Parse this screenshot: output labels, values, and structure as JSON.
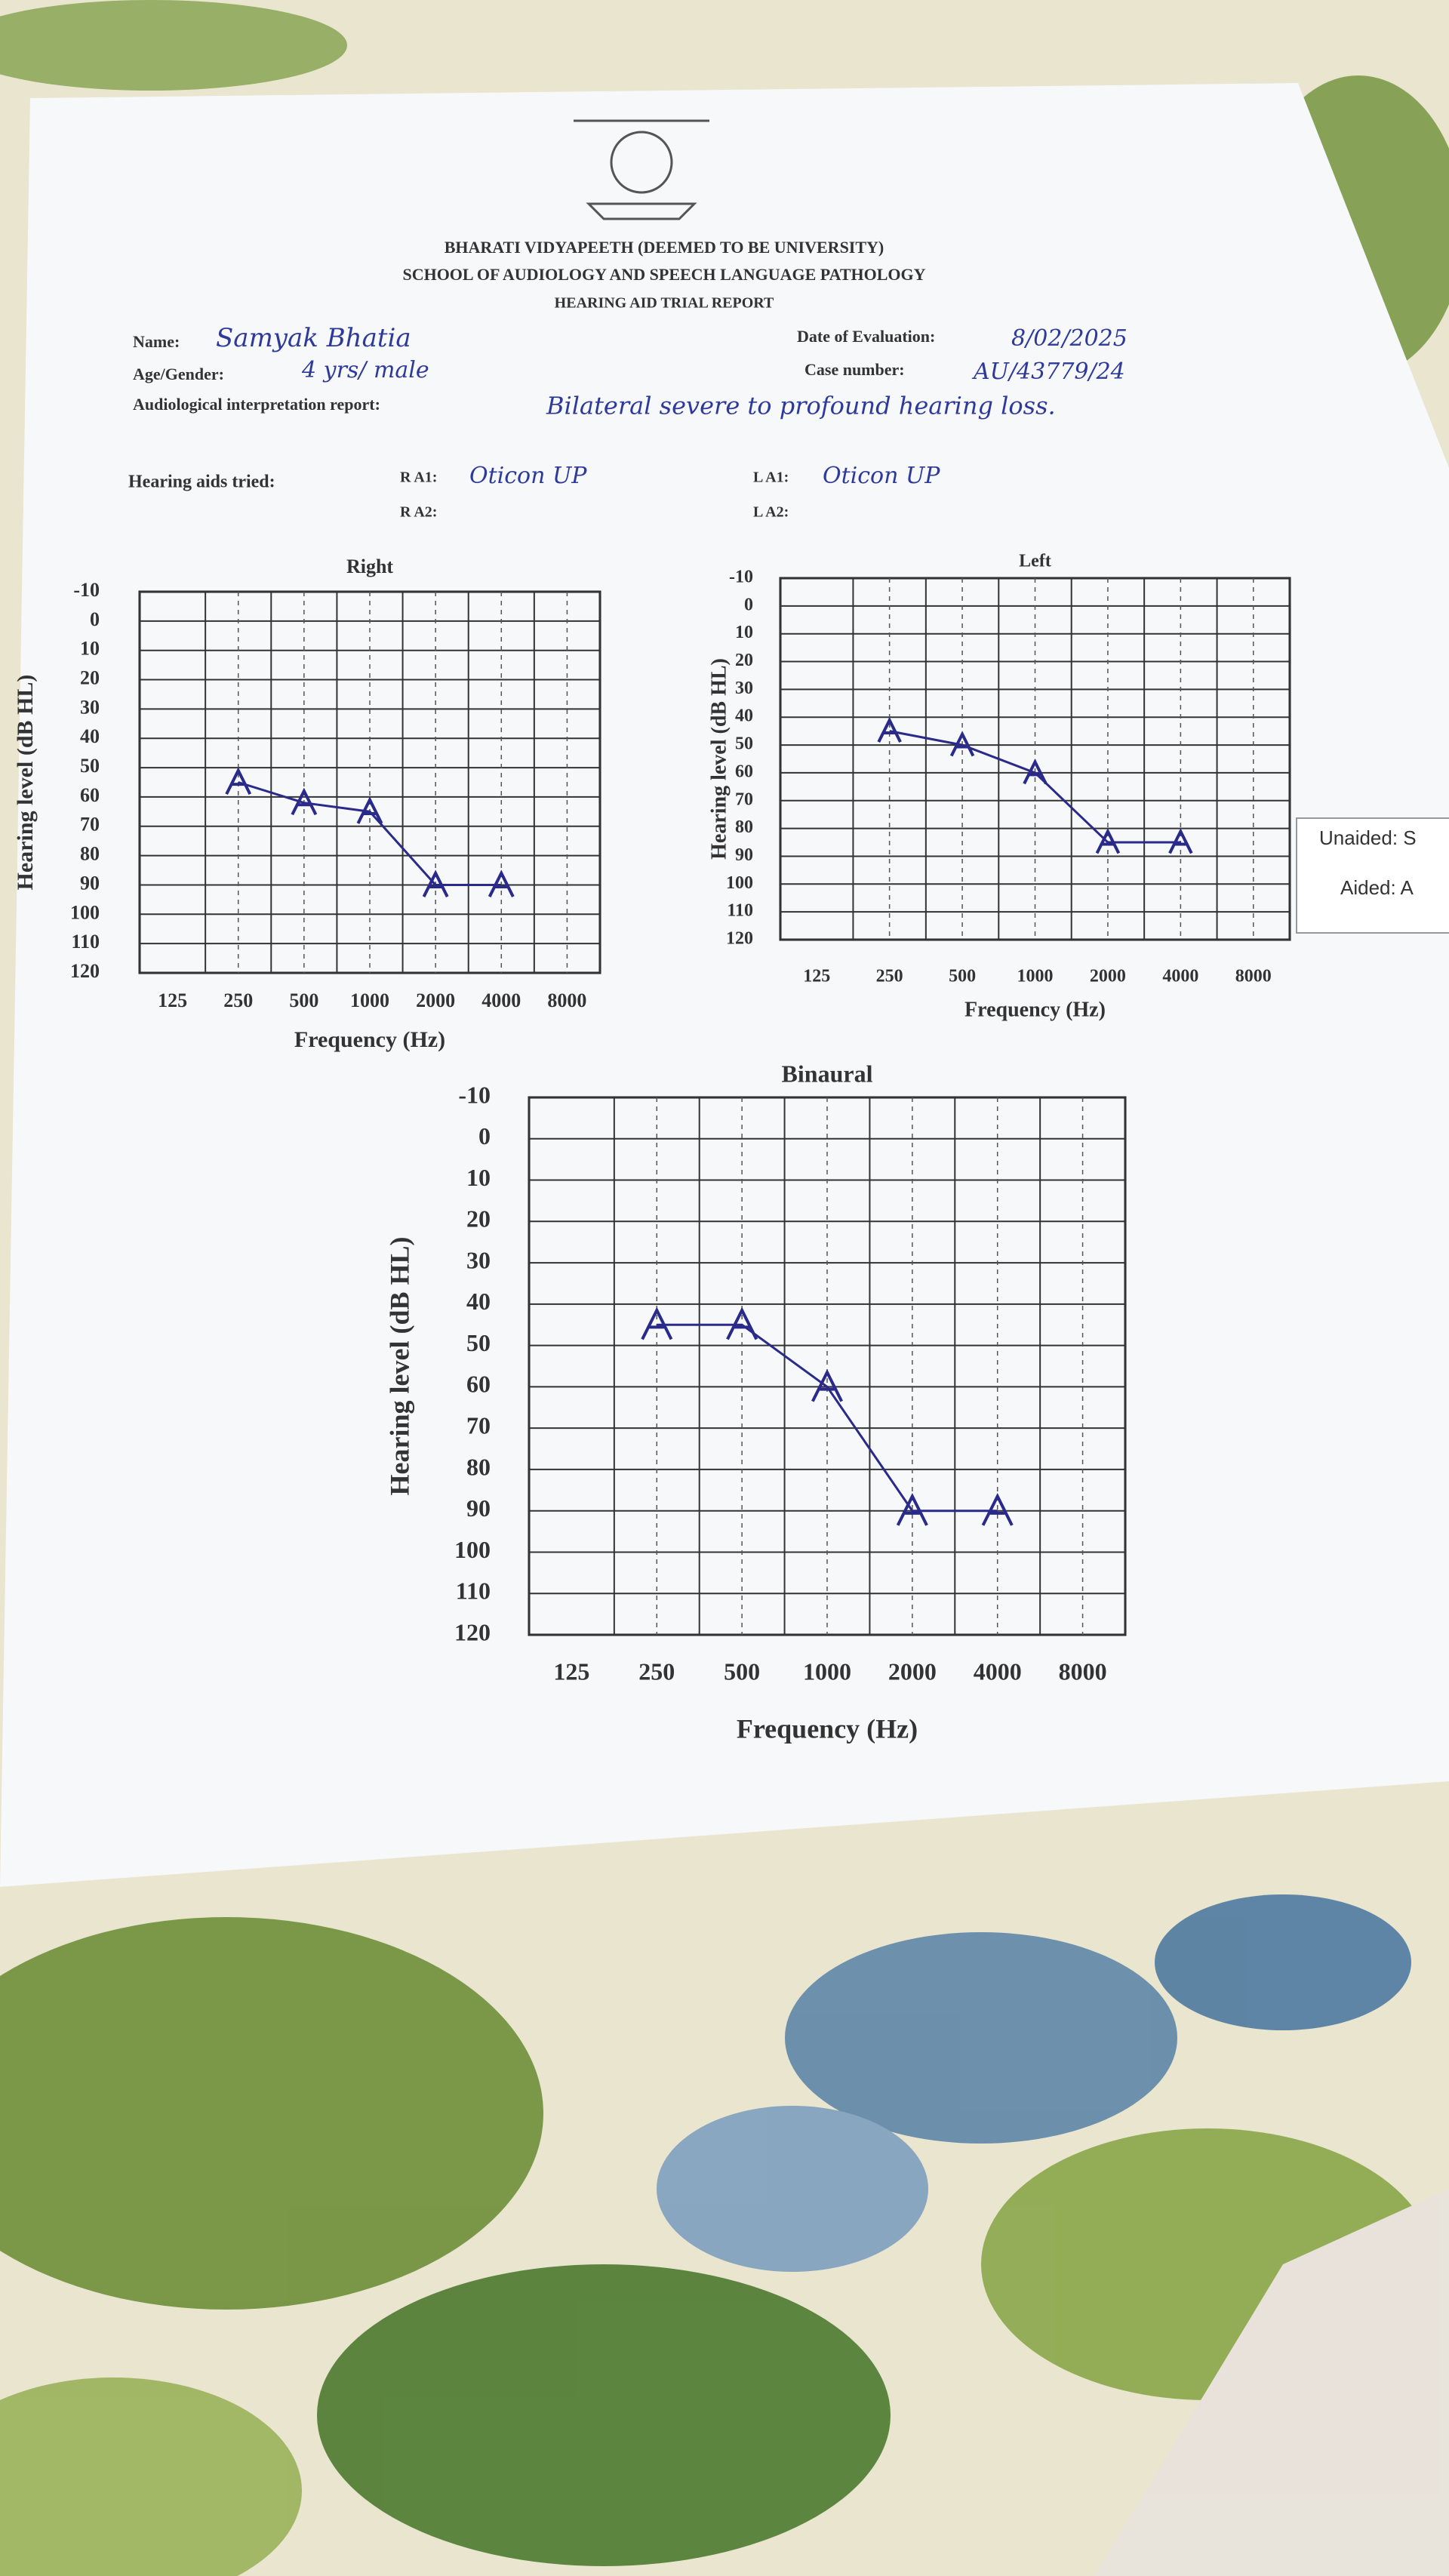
{
  "document": {
    "institution": "BHARATI VIDYAPEETH (DEEMED TO BE UNIVERSITY)",
    "school": "SCHOOL OF AUDIOLOGY AND SPEECH LANGUAGE PATHOLOGY",
    "report_title": "HEARING AID TRIAL REPORT",
    "name_label": "Name:",
    "name": "Samyak Bhatia",
    "age_label": "Age/Gender:",
    "age": "4 yrs/ male",
    "interpretation_label": "Audiological interpretation report:",
    "interpretation": "Bilateral severe to profound hearing loss.",
    "date_label": "Date of Evaluation:",
    "date": "8/02/2025",
    "case_label": "Case number:",
    "case": "AU/43779/24",
    "aids_label": "Hearing aids tried:",
    "ra1_label": "R A1:",
    "ra1": "Oticon UP",
    "ra2_label": "R A2:",
    "la1_label": "L A1:",
    "la1": "Oticon UP",
    "la2_label": "L A2:",
    "legend_unaided": "Unaided: S",
    "legend_aided": "Aided: A"
  },
  "chart_data": [
    {
      "type": "line",
      "title": "Right",
      "xlabel": "Frequency (Hz)",
      "ylabel": "Hearing level (dB HL)",
      "categories": [
        "125",
        "250",
        "500",
        "1000",
        "2000",
        "4000",
        "8000"
      ],
      "values": [
        null,
        55,
        62,
        65,
        90,
        90,
        null
      ],
      "color": "#2a2a8a",
      "ylim": [
        -10,
        120
      ],
      "yticks": [
        -10,
        0,
        10,
        20,
        30,
        40,
        50,
        60,
        70,
        80,
        90,
        100,
        110,
        120
      ],
      "y_inverted": true,
      "grid": true
    },
    {
      "type": "line",
      "title": "Left",
      "xlabel": "Frequency (Hz)",
      "ylabel": "Hearing level (dB HL)",
      "categories": [
        "125",
        "250",
        "500",
        "1000",
        "2000",
        "4000",
        "8000"
      ],
      "values": [
        null,
        45,
        50,
        60,
        85,
        85,
        null
      ],
      "color": "#2a2a8a",
      "ylim": [
        -10,
        120
      ],
      "yticks": [
        -10,
        0,
        10,
        20,
        30,
        40,
        50,
        60,
        70,
        80,
        90,
        100,
        110,
        120
      ],
      "y_inverted": true,
      "grid": true
    },
    {
      "type": "line",
      "title": "Binaural",
      "xlabel": "Frequency (Hz)",
      "ylabel": "Hearing level (dB HL)",
      "categories": [
        "125",
        "250",
        "500",
        "1000",
        "2000",
        "4000",
        "8000"
      ],
      "values": [
        null,
        45,
        45,
        60,
        90,
        90,
        null
      ],
      "color": "#2a2a8a",
      "ylim": [
        -10,
        120
      ],
      "yticks": [
        -10,
        0,
        10,
        20,
        30,
        40,
        50,
        60,
        70,
        80,
        90,
        100,
        110,
        120
      ],
      "y_inverted": true,
      "grid": true
    }
  ]
}
